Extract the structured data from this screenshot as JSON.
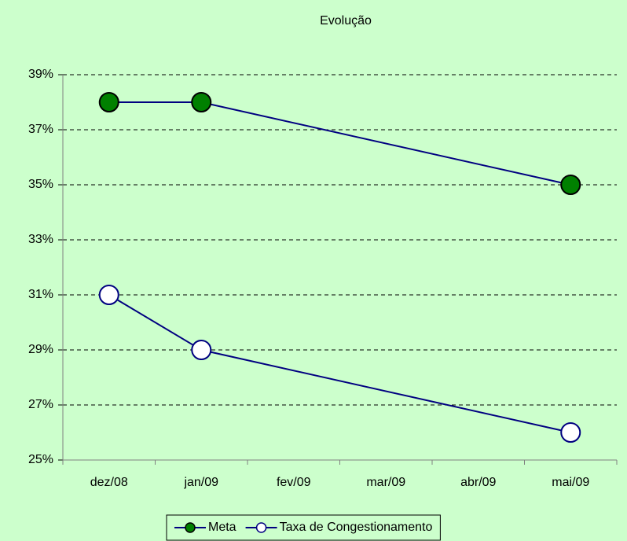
{
  "chart_data": {
    "type": "line",
    "title": "Evolução",
    "categories": [
      "dez/08",
      "jan/09",
      "fev/09",
      "mar/09",
      "abr/09",
      "mai/09"
    ],
    "series": [
      {
        "name": "Meta",
        "color": "#000080",
        "marker_fill": "#008000",
        "values": [
          38,
          38,
          null,
          null,
          null,
          35
        ]
      },
      {
        "name": "Taxa de Congestionamento",
        "color": "#000080",
        "marker_fill": "#ffffff",
        "values": [
          31,
          29,
          null,
          null,
          null,
          26
        ]
      }
    ],
    "ylim": [
      25,
      39
    ],
    "yticks": [
      {
        "value": 25,
        "label": "25%"
      },
      {
        "value": 27,
        "label": "27%"
      },
      {
        "value": 29,
        "label": "29%"
      },
      {
        "value": 31,
        "label": "31%"
      },
      {
        "value": 33,
        "label": "33%"
      },
      {
        "value": 35,
        "label": "35%"
      },
      {
        "value": 37,
        "label": "37%"
      },
      {
        "value": 39,
        "label": "39%"
      }
    ],
    "grid": true,
    "span_gaps": true,
    "legend": "bottom",
    "background": "#ccffcc"
  }
}
